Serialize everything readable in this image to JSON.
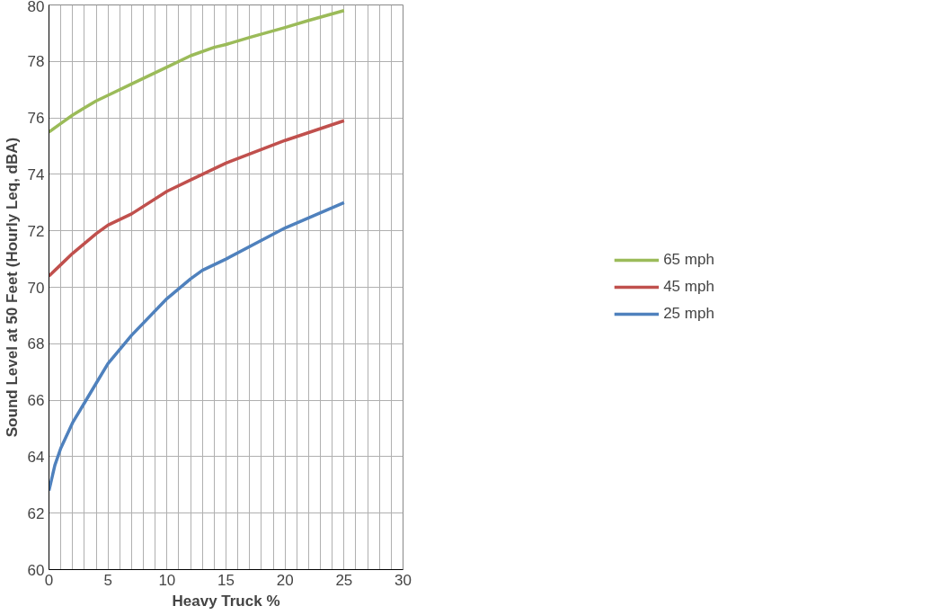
{
  "chart_data": {
    "type": "line",
    "xlabel": "Heavy Truck %",
    "ylabel": "Sound Level at 50 Feet (Hourly Leq, dBA)",
    "xlim": [
      0,
      30
    ],
    "ylim": [
      60,
      80
    ],
    "xticks": [
      0,
      {
        "value": 1,
        "label": null
      },
      {
        "value": 2,
        "label": null
      },
      {
        "value": 3,
        "label": null
      },
      {
        "value": 4,
        "label": null
      },
      5,
      {
        "value": 6,
        "label": null
      },
      {
        "value": 7,
        "label": null
      },
      {
        "value": 8,
        "label": null
      },
      {
        "value": 9,
        "label": null
      },
      10,
      {
        "value": 11,
        "label": null
      },
      {
        "value": 12,
        "label": null
      },
      {
        "value": 13,
        "label": null
      },
      {
        "value": 14,
        "label": null
      },
      15,
      {
        "value": 16,
        "label": null
      },
      {
        "value": 17,
        "label": null
      },
      {
        "value": 18,
        "label": null
      },
      {
        "value": 19,
        "label": null
      },
      20,
      {
        "value": 21,
        "label": null
      },
      {
        "value": 22,
        "label": null
      },
      {
        "value": 23,
        "label": null
      },
      {
        "value": 24,
        "label": null
      },
      25,
      {
        "value": 26,
        "label": null
      },
      {
        "value": 27,
        "label": null
      },
      {
        "value": 28,
        "label": null
      },
      {
        "value": 29,
        "label": null
      },
      30
    ],
    "yticks": [
      60,
      62,
      64,
      66,
      68,
      70,
      72,
      74,
      76,
      78,
      80
    ],
    "grid": true,
    "legend": "right",
    "marker": "none",
    "line_style": "solid",
    "series": [
      {
        "name": "65 mph",
        "color": "#9bbb59",
        "x": [
          0,
          1,
          2,
          3,
          4,
          5,
          7,
          10,
          12,
          14,
          15,
          17,
          20,
          22,
          25
        ],
        "values": [
          75.5,
          75.8,
          76.1,
          76.35,
          76.6,
          76.8,
          77.2,
          77.8,
          78.2,
          78.5,
          78.6,
          78.85,
          79.2,
          79.45,
          79.8
        ]
      },
      {
        "name": "45 mph",
        "color": "#c0504d",
        "x": [
          0,
          1,
          2,
          3,
          4,
          5,
          7,
          10,
          12,
          15,
          20,
          25
        ],
        "values": [
          70.4,
          70.8,
          71.2,
          71.55,
          71.9,
          72.2,
          72.6,
          73.4,
          73.8,
          74.4,
          75.2,
          75.9
        ]
      },
      {
        "name": "25 mph",
        "color": "#4f81bd",
        "x": [
          0,
          0.5,
          1,
          2,
          3,
          4,
          5,
          7,
          10,
          12,
          13,
          15,
          20,
          25
        ],
        "values": [
          62.8,
          63.7,
          64.3,
          65.2,
          65.9,
          66.6,
          67.3,
          68.3,
          69.6,
          70.3,
          70.6,
          71.0,
          72.1,
          73.0
        ]
      }
    ]
  }
}
